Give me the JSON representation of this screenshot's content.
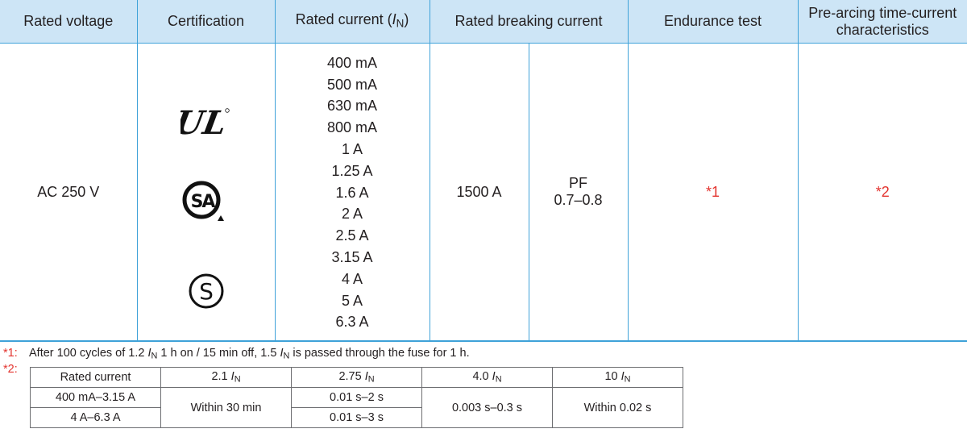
{
  "header": {
    "rated_voltage": "Rated voltage",
    "certification": "Certification",
    "rated_current_prefix": "Rated current (",
    "rated_current_symbol": "I",
    "rated_current_sub": "N",
    "rated_current_suffix": ")",
    "rated_breaking_current": "Rated breaking current",
    "endurance_test": "Endurance test",
    "pre_arcing": "Pre-arcing time-current characteristics"
  },
  "row": {
    "voltage": "AC 250 V",
    "certifications": [
      {
        "icon": "ul-recognized-icon",
        "alt": "UL"
      },
      {
        "icon": "csa-icon",
        "alt": "SA"
      },
      {
        "icon": "s-mark-icon",
        "alt": "S"
      }
    ],
    "currents": [
      "400 mA",
      "500 mA",
      "630 mA",
      "800 mA",
      "1 A",
      "1.25 A",
      "1.6 A",
      "2 A",
      "2.5 A",
      "3.15 A",
      "4 A",
      "5 A",
      "6.3 A"
    ],
    "breaking_current": "1500 A",
    "pf_label": "PF",
    "pf_value": "0.7–0.8",
    "endurance_ref": "*1",
    "pre_arcing_ref": "*2"
  },
  "colors": {
    "header_bg": "#cde5f6",
    "border_blue": "#3fa2d9",
    "note_red": "#e3342f",
    "text": "#231f20"
  },
  "notes": {
    "note1_mark": "*1:",
    "note1_a": "After 100 cycles of 1.2 ",
    "note1_i1": "I",
    "note1_sub1": "N",
    "note1_b": " 1 h on / 15 min off, 1.5 ",
    "note1_i2": "I",
    "note1_sub2": "N",
    "note1_c": " is passed through the fuse for 1 h.",
    "note2_mark": "*2:",
    "table": {
      "col0": "Rated current",
      "col1_mult": "2.1 ",
      "col2_mult": "2.75 ",
      "col3_mult": "4.0 ",
      "col4_mult": "10 ",
      "sym": "I",
      "sub": "N",
      "row1_label": "400 mA–3.15 A",
      "row2_label": "4 A–6.3 A",
      "within_30": "Within 30 min",
      "r1_c2": "0.01 s–2 s",
      "r2_c2": "0.01 s–3 s",
      "c3": "0.003 s–0.3 s",
      "c4": "Within 0.02 s"
    }
  }
}
